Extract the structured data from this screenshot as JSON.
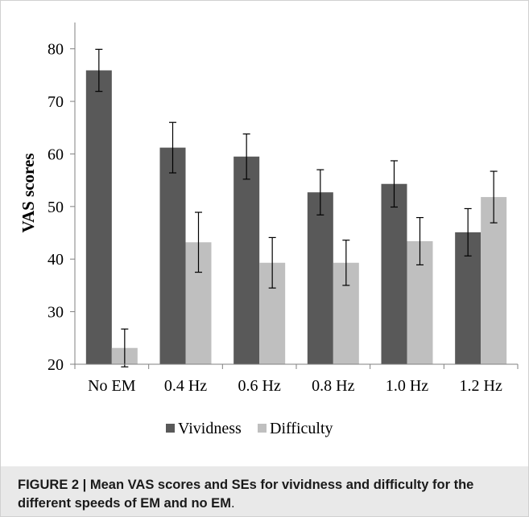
{
  "figure": {
    "caption_bold": "FIGURE 2 | Mean VAS scores and SEs for vividness and difficulty for the different speeds of EM and no EM",
    "caption_tail": "."
  },
  "chart_data": {
    "type": "bar",
    "title": "",
    "xlabel": "",
    "ylabel": "VAS scores",
    "ylim": [
      20,
      85
    ],
    "yticks": [
      20,
      30,
      40,
      50,
      60,
      70,
      80
    ],
    "grid": false,
    "legend_position": "bottom",
    "categories": [
      "No EM",
      "0.4 Hz",
      "0.6 Hz",
      "0.8 Hz",
      "1.0 Hz",
      "1.2 Hz"
    ],
    "series": [
      {
        "name": "Vividness",
        "color": "#595959",
        "values": [
          75.9,
          61.2,
          59.5,
          52.7,
          54.3,
          45.1
        ],
        "error": [
          4.0,
          4.8,
          4.3,
          4.3,
          4.4,
          4.5
        ]
      },
      {
        "name": "Difficulty",
        "color": "#bfbfbf",
        "values": [
          23.1,
          43.2,
          39.3,
          39.3,
          43.4,
          51.8
        ],
        "error": [
          3.6,
          5.7,
          4.8,
          4.3,
          4.5,
          4.9
        ]
      }
    ]
  }
}
